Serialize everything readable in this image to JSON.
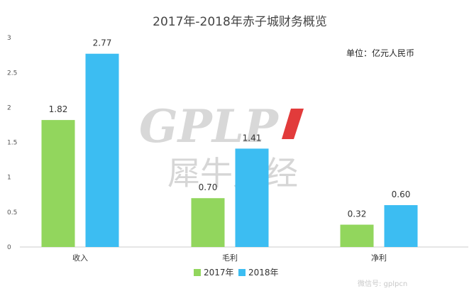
{
  "chart_data": {
    "type": "bar",
    "title": "2017年-2018年赤子城财务概览",
    "unit_note": "单位：亿元人民币",
    "categories": [
      "收入",
      "毛利",
      "净利"
    ],
    "series": [
      {
        "name": "2017年",
        "color": "#92d65d",
        "values": [
          1.82,
          0.7,
          0.32
        ],
        "labels": [
          "1.82",
          "0.70",
          "0.32"
        ]
      },
      {
        "name": "2018年",
        "color": "#3cbdf2",
        "values": [
          2.77,
          1.41,
          0.6
        ],
        "labels": [
          "2.77",
          "1.41",
          "0.60"
        ]
      }
    ],
    "yticks": [
      "0",
      "0.5",
      "1",
      "1.5",
      "2",
      "2.5",
      "3"
    ],
    "ylim": [
      0,
      3
    ],
    "grid": false,
    "legend_position": "bottom-center"
  },
  "watermark": {
    "latin": "GPLP",
    "chinese": "犀牛财经",
    "accent_color": "#e23b3b"
  },
  "corner_mark": "微信号: gplpcn"
}
